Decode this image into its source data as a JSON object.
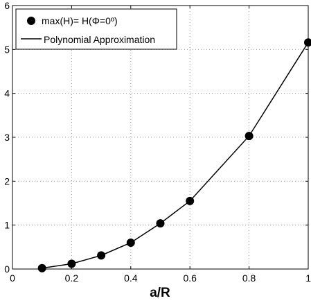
{
  "chart_data": {
    "type": "line",
    "title": "",
    "xlabel": "a/R",
    "ylabel": "",
    "xlim": [
      0,
      1
    ],
    "ylim": [
      0,
      6
    ],
    "xticks": [
      0,
      0.2,
      0.4,
      0.6,
      0.8,
      1
    ],
    "xtick_labels": [
      "0",
      "0.2",
      "0.4",
      "0.6",
      "0.8",
      "1"
    ],
    "yticks": [
      0,
      1,
      2,
      3,
      4,
      5,
      6
    ],
    "ytick_labels": [
      "0",
      "1",
      "2",
      "3",
      "4",
      "5",
      "6"
    ],
    "grid": true,
    "legend_position": "top-left",
    "series": [
      {
        "name": "max(H)= H(Φ=0º)",
        "style": "markers",
        "color": "#000000",
        "x": [
          0.1,
          0.2,
          0.3,
          0.4,
          0.5,
          0.6,
          0.8,
          1.0
        ],
        "y": [
          0.02,
          0.12,
          0.31,
          0.6,
          1.04,
          1.55,
          3.03,
          5.16
        ]
      },
      {
        "name": "Polynomial Approximation",
        "style": "line",
        "color": "#000000",
        "x": [
          0.1,
          0.2,
          0.3,
          0.4,
          0.5,
          0.6,
          0.8,
          1.0
        ],
        "y": [
          0.02,
          0.12,
          0.31,
          0.6,
          1.04,
          1.55,
          3.03,
          5.16
        ]
      }
    ]
  }
}
